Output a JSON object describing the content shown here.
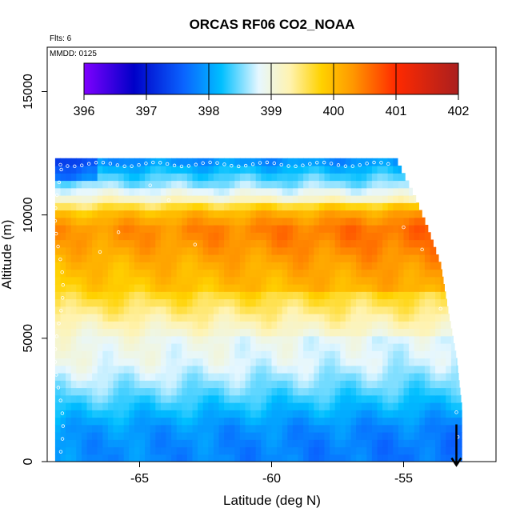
{
  "chart_data": {
    "type": "heatmap",
    "title": "ORCAS RF06 CO2_NOAA",
    "annotations": {
      "flights": "Flts: 6",
      "date": "MMDD: 0125"
    },
    "xlabel": "Latitude (deg N)",
    "ylabel": "Altitude (m)",
    "xlim": [
      -68.5,
      -51.5
    ],
    "ylim": [
      0,
      16800
    ],
    "x_ticks": [
      -65,
      -60,
      -55
    ],
    "x_tick_labels": [
      "-65",
      "-60",
      "-55"
    ],
    "y_ticks": [
      0,
      5000,
      10000,
      15000
    ],
    "y_tick_labels": [
      "0",
      "5000",
      "10000",
      "15000"
    ],
    "colorbar": {
      "min": 396,
      "max": 402,
      "ticks": [
        396,
        397,
        398,
        399,
        400,
        401,
        402
      ],
      "tick_labels": [
        "396",
        "397",
        "398",
        "399",
        "400",
        "401",
        "402"
      ],
      "colors": [
        "#7f00ff",
        "#0000c8",
        "#0a64ff",
        "#00bfff",
        "#e6f7ff",
        "#fff3b0",
        "#ffd200",
        "#ff9900",
        "#ff2a00",
        "#aa1f1f"
      ],
      "color_positions": [
        396,
        396.8,
        397.6,
        398.2,
        398.8,
        399.3,
        399.8,
        400.3,
        401.0,
        402.0
      ]
    },
    "lat_range": [
      -68.2,
      -52.8
    ],
    "alt_range": [
      0,
      12300
    ],
    "profile_points": [
      {
        "alt": 0,
        "value": 397.9
      },
      {
        "alt": 600,
        "value": 397.9
      },
      {
        "alt": 1400,
        "value": 398.0
      },
      {
        "alt": 2200,
        "value": 398.3
      },
      {
        "alt": 3000,
        "value": 398.6
      },
      {
        "alt": 4000,
        "value": 398.9
      },
      {
        "alt": 5000,
        "value": 399.0
      },
      {
        "alt": 6000,
        "value": 399.4
      },
      {
        "alt": 7000,
        "value": 399.8
      },
      {
        "alt": 8000,
        "value": 400.0
      },
      {
        "alt": 8800,
        "value": 400.2
      },
      {
        "alt": 9400,
        "value": 400.3
      },
      {
        "alt": 10000,
        "value": 400.0
      },
      {
        "alt": 10600,
        "value": 399.2
      },
      {
        "alt": 11200,
        "value": 398.6
      },
      {
        "alt": 11800,
        "value": 398.2
      },
      {
        "alt": 12300,
        "value": 397.8
      }
    ],
    "coverage_edge": [
      {
        "lat": -55.3,
        "alt": 12300
      },
      {
        "lat": -54.6,
        "alt": 10800
      },
      {
        "lat": -54.1,
        "alt": 9500
      },
      {
        "lat": -53.6,
        "alt": 8000
      },
      {
        "lat": -53.3,
        "alt": 6000
      },
      {
        "lat": -53.0,
        "alt": 4200
      },
      {
        "lat": -52.8,
        "alt": 2200
      },
      {
        "lat": -52.8,
        "alt": 0
      }
    ],
    "aircraft_arrow": {
      "lat": -53.0,
      "alt": 600
    }
  }
}
